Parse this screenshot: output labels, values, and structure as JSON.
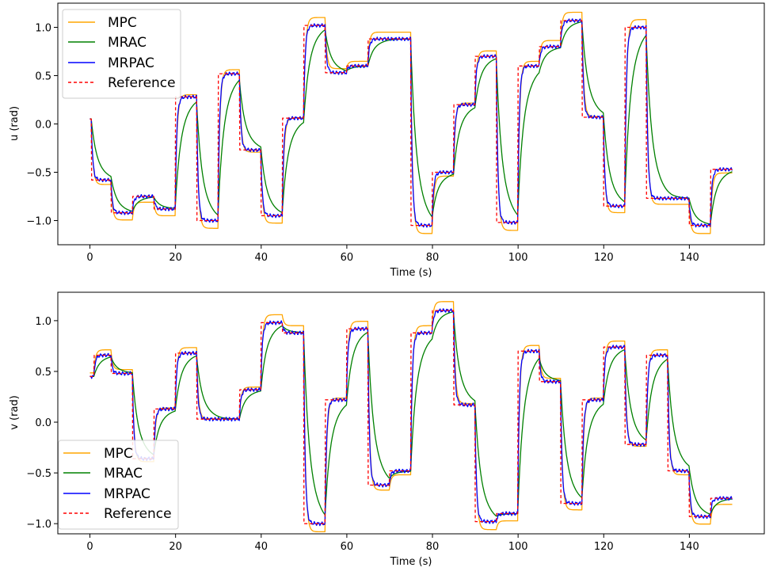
{
  "chart_data": [
    {
      "type": "line",
      "xlabel": "Time (s)",
      "ylabel": "u (rad)",
      "xlim": [
        -7.5,
        157.5
      ],
      "ylim": [
        -1.25,
        1.25
      ],
      "xticks": [
        0,
        20,
        40,
        60,
        80,
        100,
        120,
        140
      ],
      "yticks": [
        -1.0,
        -0.5,
        0.0,
        0.5,
        1.0
      ],
      "xtick_labels": [
        "0",
        "20",
        "40",
        "60",
        "80",
        "100",
        "120",
        "140"
      ],
      "ytick_labels": [
        "−1.0",
        "−0.5",
        "0.0",
        "0.5",
        "1.0"
      ],
      "legend_position": "top-left",
      "reference_steps": [
        [
          0,
          0.05
        ],
        [
          0.4,
          -0.58
        ],
        [
          5,
          -0.92
        ],
        [
          10,
          -0.75
        ],
        [
          15,
          -0.88
        ],
        [
          20,
          0.28
        ],
        [
          25,
          -1.0
        ],
        [
          30,
          0.52
        ],
        [
          35,
          -0.27
        ],
        [
          40,
          -0.95
        ],
        [
          45,
          0.06
        ],
        [
          50,
          1.02
        ],
        [
          55,
          0.53
        ],
        [
          60,
          0.6
        ],
        [
          65,
          0.88
        ],
        [
          75,
          -1.05
        ],
        [
          80,
          -0.5
        ],
        [
          85,
          0.2
        ],
        [
          90,
          0.7
        ],
        [
          95,
          -1.02
        ],
        [
          100,
          0.6
        ],
        [
          105,
          0.8
        ],
        [
          110,
          1.07
        ],
        [
          115,
          0.07
        ],
        [
          120,
          -0.85
        ],
        [
          125,
          1.0
        ],
        [
          130,
          -0.77
        ],
        [
          140,
          -1.05
        ],
        [
          145,
          -0.47
        ],
        [
          150,
          -0.47
        ]
      ],
      "series": [
        {
          "name": "MPC",
          "color": "#FFA500",
          "style": "solid",
          "gain": 1.08,
          "tau": 0.4,
          "overshoot": 0.0,
          "noise": 0.0
        },
        {
          "name": "MRAC",
          "color": "#008000",
          "style": "solid",
          "gain": 1.0,
          "tau": 1.6,
          "overshoot": 0.06,
          "noise": 0.0
        },
        {
          "name": "MRPAC",
          "color": "#0000FF",
          "style": "solid",
          "gain": 1.0,
          "tau": 0.35,
          "overshoot": 0.0,
          "noise": 0.012
        },
        {
          "name": "Reference",
          "color": "#FF0000",
          "style": "dashed",
          "gain": 1.0,
          "tau": 0.0,
          "overshoot": 0.0,
          "noise": 0.0
        }
      ]
    },
    {
      "type": "line",
      "xlabel": "Time (s)",
      "ylabel": "v (rad)",
      "xlim": [
        -7.5,
        157.5
      ],
      "ylim": [
        -1.1,
        1.28
      ],
      "xticks": [
        0,
        20,
        40,
        60,
        80,
        100,
        120,
        140
      ],
      "yticks": [
        -1.0,
        -0.5,
        0.0,
        0.5,
        1.0
      ],
      "xtick_labels": [
        "0",
        "20",
        "40",
        "60",
        "80",
        "100",
        "120",
        "140"
      ],
      "ytick_labels": [
        "−1.0",
        "−0.5",
        "0.0",
        "0.5",
        "1.0"
      ],
      "legend_position": "bottom-left",
      "reference_steps": [
        [
          0,
          0.45
        ],
        [
          1,
          0.66
        ],
        [
          5,
          0.48
        ],
        [
          10,
          -0.36
        ],
        [
          15,
          0.13
        ],
        [
          20,
          0.68
        ],
        [
          25,
          0.03
        ],
        [
          30,
          0.03
        ],
        [
          35,
          0.32
        ],
        [
          40,
          0.98
        ],
        [
          45,
          0.88
        ],
        [
          50,
          -1.0
        ],
        [
          55,
          0.22
        ],
        [
          60,
          0.92
        ],
        [
          65,
          -0.62
        ],
        [
          70,
          -0.48
        ],
        [
          75,
          0.88
        ],
        [
          80,
          1.1
        ],
        [
          85,
          0.17
        ],
        [
          90,
          -0.98
        ],
        [
          95,
          -0.9
        ],
        [
          100,
          0.7
        ],
        [
          105,
          0.4
        ],
        [
          110,
          -0.8
        ],
        [
          115,
          0.22
        ],
        [
          120,
          0.74
        ],
        [
          125,
          -0.22
        ],
        [
          130,
          0.66
        ],
        [
          135,
          -0.48
        ],
        [
          140,
          -0.93
        ],
        [
          145,
          -0.75
        ],
        [
          150,
          -0.75
        ]
      ],
      "series": [
        {
          "name": "MPC",
          "color": "#FFA500",
          "style": "solid",
          "gain": 1.08,
          "tau": 0.4,
          "overshoot": 0.0,
          "noise": 0.0
        },
        {
          "name": "MRAC",
          "color": "#008000",
          "style": "solid",
          "gain": 1.0,
          "tau": 1.6,
          "overshoot": 0.06,
          "noise": 0.0
        },
        {
          "name": "MRPAC",
          "color": "#0000FF",
          "style": "solid",
          "gain": 1.0,
          "tau": 0.35,
          "overshoot": 0.0,
          "noise": 0.012
        },
        {
          "name": "Reference",
          "color": "#FF0000",
          "style": "dashed",
          "gain": 1.0,
          "tau": 0.0,
          "overshoot": 0.0,
          "noise": 0.0
        }
      ]
    }
  ]
}
